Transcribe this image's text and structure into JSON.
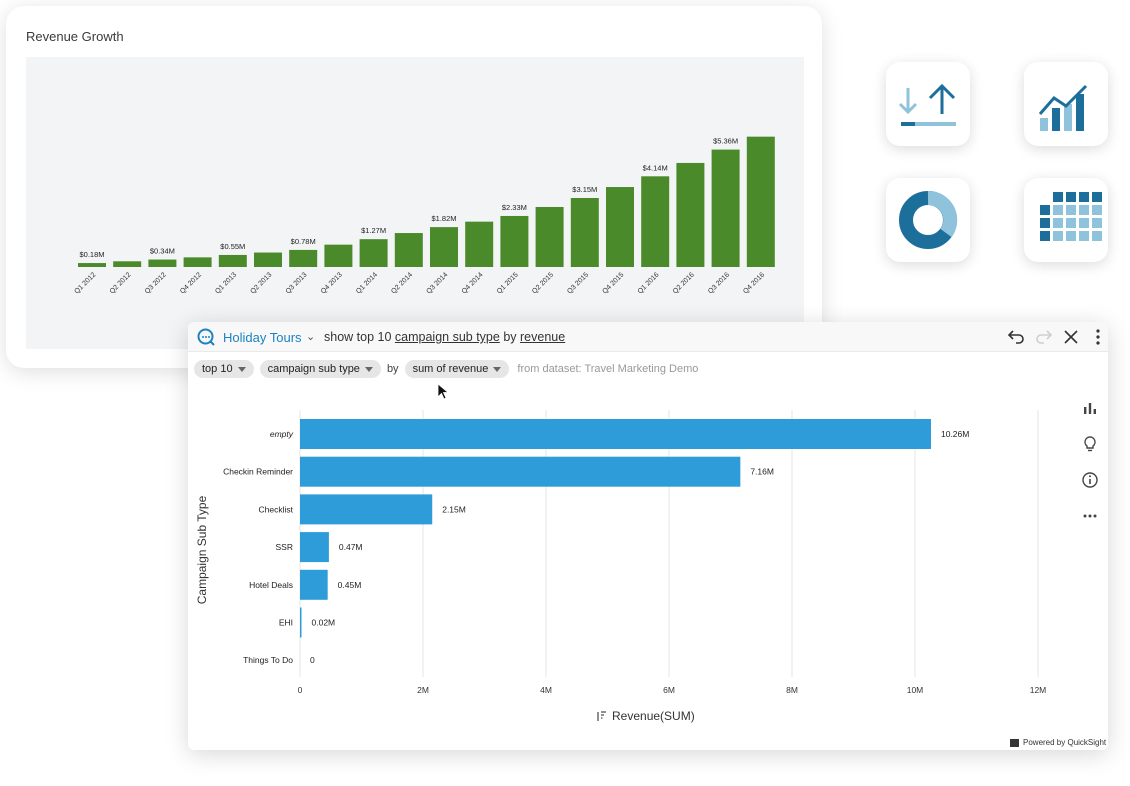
{
  "revenue_growth": {
    "title": "Revenue Growth"
  },
  "qbar": {
    "topic": "Holiday Tours",
    "question_prefix": "show top 10",
    "question_field": "campaign sub type",
    "question_by": "by",
    "question_metric": "revenue"
  },
  "chips": {
    "top": "top 10",
    "field": "campaign sub type",
    "by": "by",
    "metric": "sum of revenue",
    "dataset": "from dataset: Travel Marketing Demo"
  },
  "footer": {
    "powered": "Powered by QuickSight"
  },
  "icons": {
    "tiles": [
      "upload-download-icon",
      "line-bar-chart-icon",
      "donut-chart-icon",
      "grid-table-icon"
    ],
    "toolbar": [
      "undo-icon",
      "redo-icon",
      "close-icon",
      "more-vertical-icon"
    ],
    "side": [
      "bar-chart-icon",
      "lightbulb-icon",
      "info-icon",
      "more-horizontal-icon"
    ]
  },
  "colors": {
    "green_bar": "#4a8a2a",
    "blue_bar": "#2e9cd9",
    "accent": "#1b82c4",
    "tile_dark": "#1c6e9b",
    "tile_light": "#8fc3dc"
  },
  "chart_data": [
    {
      "type": "bar",
      "title": "Revenue Growth",
      "xlabel": "",
      "ylabel": "",
      "categories": [
        "Q1 2012",
        "Q2 2012",
        "Q3 2012",
        "Q4 2012",
        "Q1 2013",
        "Q2 2013",
        "Q3 2013",
        "Q4 2013",
        "Q1 2014",
        "Q2 2014",
        "Q3 2014",
        "Q4 2014",
        "Q1 2015",
        "Q2 2015",
        "Q3 2015",
        "Q4 2015",
        "Q1 2016",
        "Q2 2016",
        "Q3 2016",
        "Q4 2016"
      ],
      "tick_labels": [
        "Q1 2012",
        "Q2 2012",
        "Q3 2012",
        "Q4 2012",
        "Q1 2013",
        "Q2 2013",
        "Q3 2013",
        "Q4 2013",
        "Q1 2014",
        "Q2 2014",
        "Q3 2014",
        "Q4 2014",
        "Q1 2015",
        "Q2 2015",
        "Q3 2015",
        "Q4 2015",
        "Q1 2016",
        "Q2 2016",
        "Q3 2016",
        "Q4 2016"
      ],
      "values": [
        0.18,
        0.26,
        0.34,
        0.44,
        0.55,
        0.66,
        0.78,
        1.02,
        1.27,
        1.55,
        1.82,
        2.07,
        2.33,
        2.74,
        3.15,
        3.65,
        4.14,
        4.75,
        5.36,
        5.95
      ],
      "data_labels": [
        "$0.18M",
        "",
        "$0.34M",
        "",
        "$0.55M",
        "",
        "$0.78M",
        "",
        "$1.27M",
        "",
        "$1.82M",
        "",
        "$2.33M",
        "",
        "$3.15M",
        "",
        "$4.14M",
        "",
        "$5.36M",
        ""
      ],
      "ylim": [
        0,
        6.3
      ],
      "grid": false,
      "color": "#4a8a2a"
    },
    {
      "type": "bar",
      "orientation": "horizontal",
      "title": "",
      "xlabel": "Revenue(SUM)",
      "ylabel": "Campaign Sub Type",
      "categories": [
        "empty",
        "Checkin Reminder",
        "Checklist",
        "SSR",
        "Hotel Deals",
        "EHI",
        "Things To Do"
      ],
      "values": [
        10.26,
        7.16,
        2.15,
        0.47,
        0.45,
        0.02,
        0
      ],
      "data_labels": [
        "10.26M",
        "7.16M",
        "2.15M",
        "0.47M",
        "0.45M",
        "0.02M",
        "0"
      ],
      "x_ticks": [
        0,
        2,
        4,
        6,
        8,
        10,
        12
      ],
      "x_tick_labels": [
        "0",
        "2M",
        "4M",
        "6M",
        "8M",
        "10M",
        "12M"
      ],
      "xlim": [
        0,
        12
      ],
      "grid": true,
      "color": "#2e9cd9"
    }
  ]
}
